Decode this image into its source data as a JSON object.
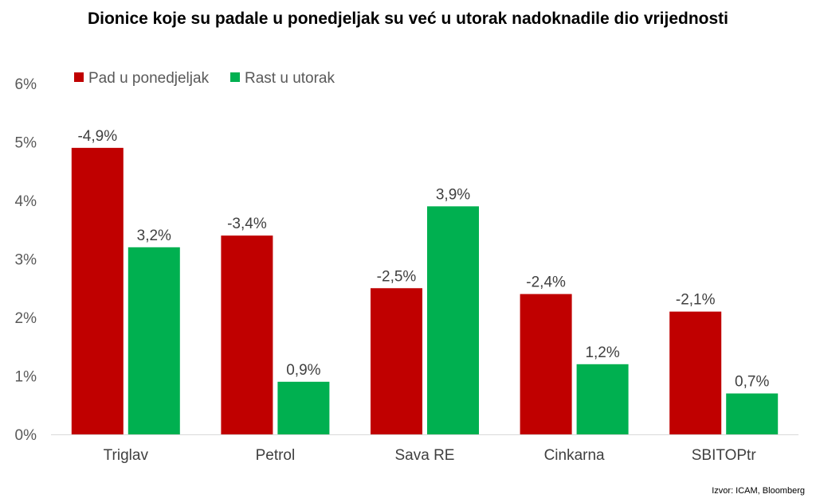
{
  "chart_data": {
    "type": "bar",
    "title": "Dionice koje su padale u ponedjeljak su već u utorak nadoknadile dio vrijednosti",
    "xlabel": "",
    "ylabel": "",
    "ylim": [
      0,
      6
    ],
    "yticks": [
      "0%",
      "1%",
      "2%",
      "3%",
      "4%",
      "5%",
      "6%"
    ],
    "categories": [
      "Triglav",
      "Petrol",
      "Sava RE",
      "Cinkarna",
      "SBITOPtr"
    ],
    "series": [
      {
        "name": "Pad u ponedjeljak",
        "color": "#c00000",
        "values": [
          4.9,
          3.4,
          2.5,
          2.4,
          2.1
        ],
        "labels": [
          "-4,9%",
          "-3,4%",
          "-2,5%",
          "-2,4%",
          "-2,1%"
        ]
      },
      {
        "name": "Rast u utorak",
        "color": "#00b050",
        "values": [
          3.2,
          0.9,
          3.9,
          1.2,
          0.7
        ],
        "labels": [
          "3,2%",
          "0,9%",
          "3,9%",
          "1,2%",
          "0,7%"
        ]
      }
    ],
    "legend_position": "top-left",
    "grid": false,
    "source": "Izvor: ICAM, Bloomberg"
  }
}
